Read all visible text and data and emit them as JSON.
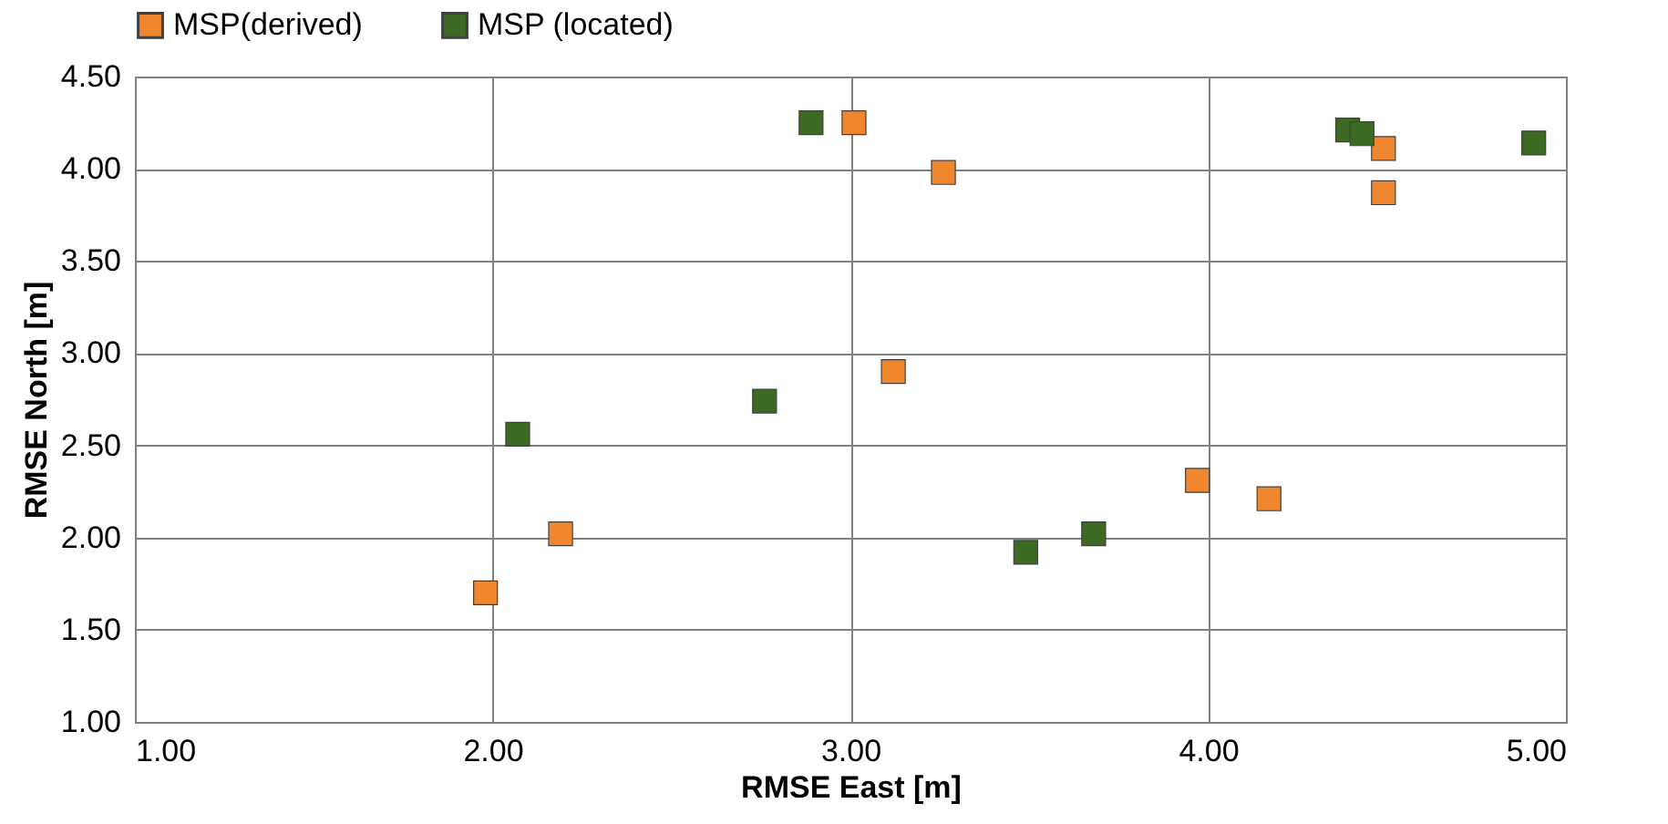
{
  "chart_data": {
    "type": "scatter",
    "xlabel": "RMSE East [m]",
    "ylabel": "RMSE North  [m]",
    "xlim": [
      1,
      5
    ],
    "ylim": [
      1,
      4.5
    ],
    "xticks": [
      {
        "value": 1,
        "label": "1.00"
      },
      {
        "value": 2,
        "label": "2.00"
      },
      {
        "value": 3,
        "label": "3.00"
      },
      {
        "value": 4,
        "label": "4.00"
      },
      {
        "value": 5,
        "label": "5.00"
      }
    ],
    "yticks": [
      {
        "value": 1,
        "label": "1.00"
      },
      {
        "value": 1.5,
        "label": "1.50"
      },
      {
        "value": 2,
        "label": "2.00"
      },
      {
        "value": 2.5,
        "label": "2.50"
      },
      {
        "value": 3,
        "label": "3.00"
      },
      {
        "value": 3.5,
        "label": "3.50"
      },
      {
        "value": 4,
        "label": "4.00"
      },
      {
        "value": 4.5,
        "label": "4.50"
      }
    ],
    "grid": true,
    "legend": "top",
    "marker": "square",
    "series": [
      {
        "name": "MSP(derived)",
        "color": "#f0862e",
        "x": [
          1.98,
          2.19,
          3.01,
          3.26,
          3.12,
          3.97,
          4.17,
          4.49,
          4.49
        ],
        "values": [
          1.7,
          2.02,
          4.25,
          3.98,
          2.9,
          2.31,
          2.21,
          4.11,
          3.87
        ]
      },
      {
        "name": "MSP (located)",
        "color": "#3d6a22",
        "x": [
          2.07,
          2.76,
          2.89,
          3.49,
          3.68,
          4.39,
          4.43,
          4.91
        ],
        "values": [
          2.56,
          2.74,
          4.25,
          1.92,
          2.02,
          4.21,
          4.19,
          4.14
        ]
      }
    ]
  }
}
